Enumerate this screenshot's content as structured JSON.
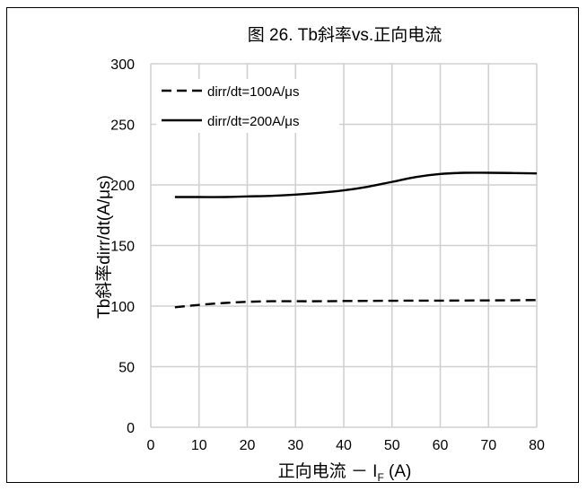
{
  "chart_data": {
    "type": "line",
    "title": "图 26. Tb斜率vs.正向电流",
    "xlabel": "正向电流 － I",
    "xlabel_sub": "F",
    "xlabel_suffix": " (A)",
    "ylabel": "Tb斜率dirr/dt(A/μs)",
    "xlim": [
      0,
      80
    ],
    "ylim": [
      0,
      300
    ],
    "xticks": [
      0,
      10,
      20,
      30,
      40,
      50,
      60,
      70,
      80
    ],
    "yticks": [
      0,
      50,
      100,
      150,
      200,
      250,
      300
    ],
    "grid": true,
    "legend_position": "top-left",
    "series": [
      {
        "name": "dirr/dt=100A/μs",
        "style": "dashed",
        "color": "#000000",
        "x": [
          5,
          10,
          15,
          20,
          25,
          30,
          35,
          40,
          45,
          50,
          55,
          60,
          65,
          70,
          75,
          80
        ],
        "y": [
          99,
          101,
          102.5,
          103.5,
          104,
          104,
          104,
          104.2,
          104.3,
          104.4,
          104.5,
          104.5,
          104.6,
          104.7,
          104.8,
          105
        ]
      },
      {
        "name": "dirr/dt=200A/μs",
        "style": "solid",
        "color": "#000000",
        "x": [
          5,
          10,
          15,
          20,
          25,
          30,
          35,
          40,
          45,
          50,
          55,
          60,
          65,
          70,
          75,
          80
        ],
        "y": [
          190,
          190,
          190,
          190.5,
          191,
          192,
          193.5,
          195.5,
          198.5,
          202.5,
          206.5,
          209,
          210,
          210,
          209.8,
          209.5
        ]
      }
    ]
  }
}
